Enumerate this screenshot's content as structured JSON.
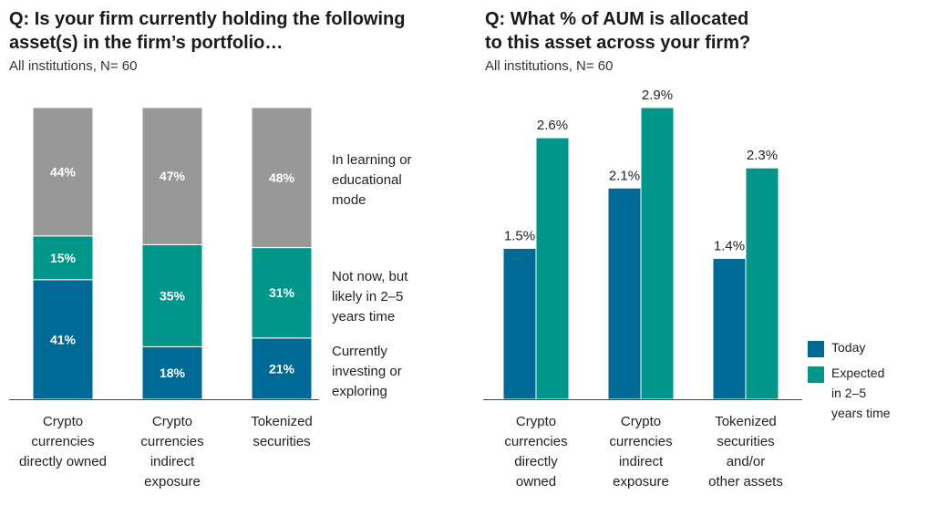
{
  "left": {
    "title_lines": [
      "Q: Is your firm currently holding the following",
      "asset(s) in the firm’s portfolio…"
    ],
    "subtitle": "All institutions, N= 60"
  },
  "right": {
    "title_lines": [
      "Q: What % of AUM is allocated",
      "to this asset across your firm?"
    ],
    "subtitle": "All institutions, N= 60"
  },
  "colors": {
    "blue": "#006a96",
    "teal": "#00968a",
    "gray": "#989898"
  },
  "chart_data": [
    {
      "type": "bar",
      "stacked": true,
      "unit": "percent",
      "categories": [
        [
          "Crypto",
          "currencies",
          "directly owned"
        ],
        [
          "Crypto",
          "currencies",
          "indirect",
          "exposure"
        ],
        [
          "Tokenized",
          "securities"
        ]
      ],
      "series": [
        {
          "name": [
            "Currently",
            "investing or",
            "exploring"
          ],
          "color": "blue",
          "values": [
            41,
            18,
            21
          ],
          "labels": [
            "41%",
            "18%",
            "21%"
          ]
        },
        {
          "name": [
            "Not now, but",
            "likely in 2–5",
            "years time"
          ],
          "color": "teal",
          "values": [
            15,
            35,
            31
          ],
          "labels": [
            "15%",
            "35%",
            "31%"
          ]
        },
        {
          "name": [
            "In learning or",
            "educational",
            "mode"
          ],
          "color": "gray",
          "values": [
            44,
            47,
            48
          ],
          "labels": [
            "44%",
            "47%",
            "48%"
          ]
        }
      ],
      "ylim": [
        0,
        100
      ],
      "legend_position": "right"
    },
    {
      "type": "bar",
      "stacked": false,
      "unit": "percent",
      "categories": [
        [
          "Crypto",
          "currencies",
          "directly",
          "owned"
        ],
        [
          "Crypto",
          "currencies",
          "indirect",
          "exposure"
        ],
        [
          "Tokenized",
          "securities",
          "and/or",
          "other assets"
        ]
      ],
      "series": [
        {
          "name": [
            "Today"
          ],
          "color": "blue",
          "values": [
            1.5,
            2.1,
            1.4
          ],
          "labels": [
            "1.5%",
            "2.1%",
            "1.4%"
          ]
        },
        {
          "name": [
            "Expected",
            "in 2–5",
            "years time"
          ],
          "color": "teal",
          "values": [
            2.6,
            2.9,
            2.3
          ],
          "labels": [
            "2.6%",
            "2.9%",
            "2.3%"
          ]
        }
      ],
      "ylim": [
        0,
        2.9
      ],
      "legend_position": "bottom-right"
    }
  ]
}
